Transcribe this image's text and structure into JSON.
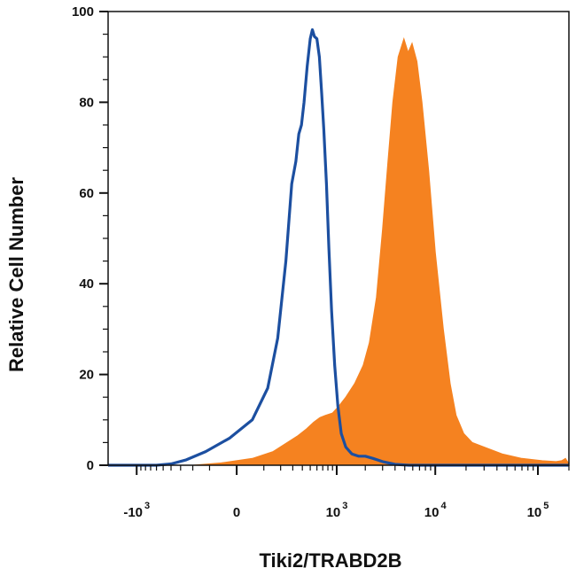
{
  "chart_data": {
    "type": "area",
    "xlabel": "Tiki2/TRABD2B",
    "ylabel": "Relative Cell Number",
    "x_scale": "biexponential",
    "xlim": [
      -2000,
      200000
    ],
    "ylim": [
      0,
      100
    ],
    "y_ticks": [
      0,
      20,
      40,
      60,
      80,
      100
    ],
    "x_ticks": [
      {
        "value": -1000,
        "base": "-10",
        "exp": "3"
      },
      {
        "value": 0,
        "base": "0",
        "exp": ""
      },
      {
        "value": 1000,
        "base": "10",
        "exp": "3"
      },
      {
        "value": 10000,
        "base": "10",
        "exp": "4"
      },
      {
        "value": 100000,
        "base": "10",
        "exp": "5"
      }
    ],
    "grid": false,
    "legend": "none",
    "series": [
      {
        "style": "filled",
        "color": "#f58220",
        "points": [
          [
            -2000,
            0
          ],
          [
            -200,
            0
          ],
          [
            -50,
            0.5
          ],
          [
            50,
            1.5
          ],
          [
            150,
            3
          ],
          [
            250,
            5
          ],
          [
            350,
            6.5
          ],
          [
            450,
            8
          ],
          [
            550,
            9.5
          ],
          [
            650,
            10.5
          ],
          [
            750,
            11
          ],
          [
            900,
            11.5
          ],
          [
            1050,
            13
          ],
          [
            1250,
            15
          ],
          [
            1550,
            18
          ],
          [
            1900,
            22
          ],
          [
            2200,
            27
          ],
          [
            2600,
            37
          ],
          [
            3000,
            52
          ],
          [
            3400,
            67
          ],
          [
            3800,
            80
          ],
          [
            4300,
            90
          ],
          [
            4900,
            94
          ],
          [
            5400,
            91
          ],
          [
            5900,
            93
          ],
          [
            6600,
            89
          ],
          [
            7400,
            80
          ],
          [
            8600,
            65
          ],
          [
            10000,
            47
          ],
          [
            12000,
            30
          ],
          [
            14000,
            18
          ],
          [
            16000,
            11
          ],
          [
            19000,
            7
          ],
          [
            23000,
            5
          ],
          [
            30000,
            4
          ],
          [
            45000,
            2.5
          ],
          [
            70000,
            1.5
          ],
          [
            110000,
            1
          ],
          [
            150000,
            0.8
          ],
          [
            170000,
            1
          ],
          [
            185000,
            1.5
          ],
          [
            195000,
            0.7
          ],
          [
            200000,
            0
          ]
        ]
      },
      {
        "style": "line",
        "color": "#1c4fa0",
        "points": [
          [
            -2000,
            0
          ],
          [
            -600,
            0
          ],
          [
            -400,
            0.3
          ],
          [
            -250,
            1.2
          ],
          [
            -120,
            3
          ],
          [
            -20,
            6
          ],
          [
            50,
            10
          ],
          [
            120,
            17
          ],
          [
            180,
            28
          ],
          [
            240,
            45
          ],
          [
            290,
            62
          ],
          [
            330,
            67
          ],
          [
            360,
            73
          ],
          [
            390,
            75
          ],
          [
            420,
            80
          ],
          [
            460,
            88
          ],
          [
            500,
            94
          ],
          [
            530,
            96
          ],
          [
            560,
            94.5
          ],
          [
            600,
            94
          ],
          [
            640,
            90
          ],
          [
            680,
            82
          ],
          [
            720,
            74
          ],
          [
            770,
            62
          ],
          [
            820,
            48
          ],
          [
            880,
            34
          ],
          [
            950,
            22
          ],
          [
            1030,
            13
          ],
          [
            1120,
            7
          ],
          [
            1250,
            4
          ],
          [
            1450,
            2.5
          ],
          [
            1700,
            2
          ],
          [
            2000,
            2
          ],
          [
            2400,
            1.5
          ],
          [
            3000,
            0.8
          ],
          [
            4000,
            0.2
          ],
          [
            5500,
            0
          ],
          [
            200000,
            0
          ]
        ]
      }
    ]
  }
}
